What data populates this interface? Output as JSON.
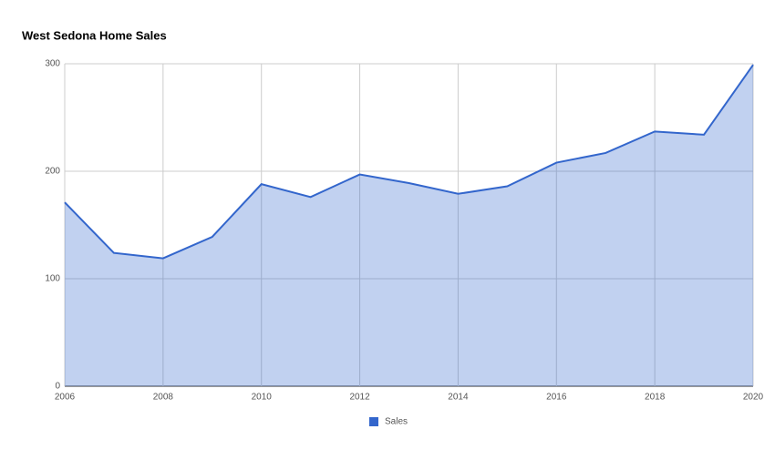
{
  "chart_data": {
    "type": "area",
    "title": "West Sedona Home Sales",
    "x": [
      2006,
      2007,
      2008,
      2009,
      2010,
      2011,
      2012,
      2013,
      2014,
      2015,
      2016,
      2017,
      2018,
      2019,
      2020
    ],
    "series": [
      {
        "name": "Sales",
        "color": "#3366cc",
        "values": [
          171,
          124,
          119,
          139,
          188,
          176,
          197,
          189,
          179,
          186,
          208,
          217,
          237,
          234,
          299
        ]
      }
    ],
    "xlim": [
      2006,
      2020
    ],
    "xticks": [
      2006,
      2008,
      2010,
      2012,
      2014,
      2016,
      2018,
      2020
    ],
    "ylim": [
      0,
      300
    ],
    "yticks": [
      0,
      100,
      200,
      300
    ],
    "grid": true,
    "legend": "bottom"
  }
}
